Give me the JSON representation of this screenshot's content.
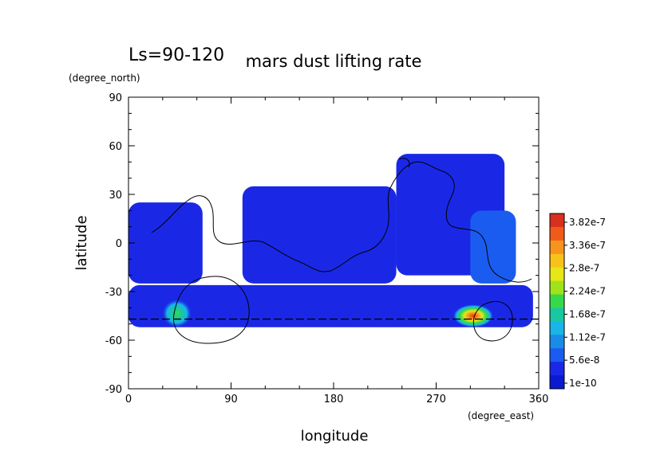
{
  "chart_data": {
    "type": "heatmap",
    "title": "mars dust lifting rate",
    "subtitle": "Ls=90-120",
    "xlabel": "longitude",
    "ylabel": "latitude",
    "x_units": "(degree_east)",
    "y_units": "(degree_north)",
    "xlim": [
      0,
      360
    ],
    "ylim": [
      -90,
      90
    ],
    "x_ticks": [
      "0",
      "90",
      "180",
      "270",
      "360"
    ],
    "y_ticks": [
      "90",
      "60",
      "30",
      "0",
      "-30",
      "-60",
      "-90"
    ],
    "colorbar": {
      "labels": [
        "3.82e-7",
        "3.36e-7",
        "2.8e-7",
        "2.24e-7",
        "1.68e-7",
        "1.12e-7",
        "5.6e-8",
        "1e-10"
      ],
      "colors": [
        "#d7301f",
        "#f05a1a",
        "#f7941d",
        "#f9c21a",
        "#e6e619",
        "#9fe31a",
        "#37d94a",
        "#19c7a0",
        "#19b5e6",
        "#198ce6",
        "#1a5cf0",
        "#1a28e6",
        "#0a1ad0"
      ]
    },
    "regions": [
      {
        "lon": [
          0,
          65
        ],
        "lat": [
          -25,
          25
        ],
        "value": 3e-08
      },
      {
        "lon": [
          100,
          235
        ],
        "lat": [
          -25,
          35
        ],
        "value": 3e-08
      },
      {
        "lon": [
          235,
          330
        ],
        "lat": [
          -20,
          55
        ],
        "value": 3e-08
      },
      {
        "lon": [
          0,
          355
        ],
        "lat": [
          -52,
          -26
        ],
        "value": 3e-08
      },
      {
        "lon": [
          300,
          340
        ],
        "lat": [
          -25,
          20
        ],
        "value": 5e-08
      },
      {
        "lon": [
          30,
          55
        ],
        "lat": [
          -52,
          -35
        ],
        "value": 1.7e-07
      },
      {
        "lon": [
          285,
          320
        ],
        "lat": [
          -52,
          -38
        ],
        "value": 3.82e-07
      }
    ],
    "reference_line_lat": -47
  }
}
